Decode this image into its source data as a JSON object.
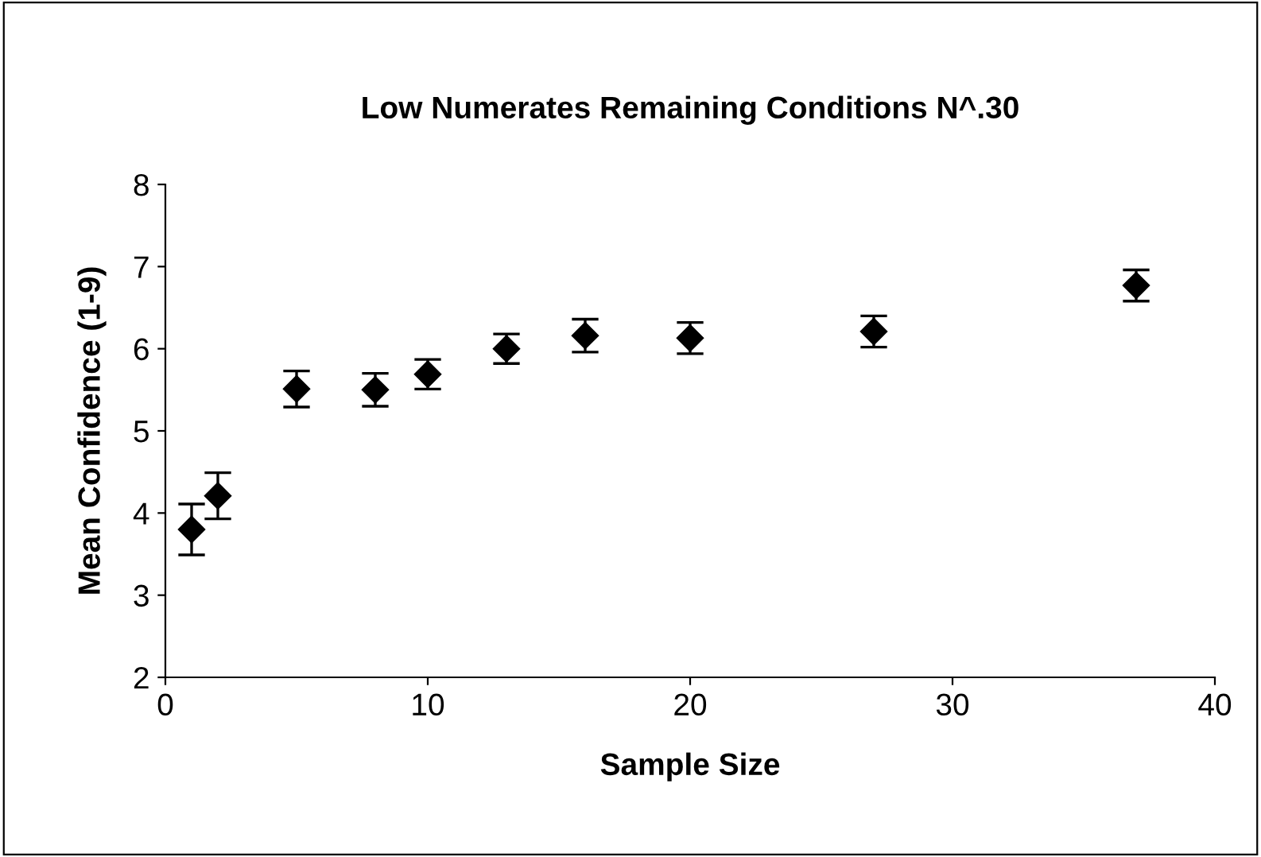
{
  "chart_data": {
    "type": "scatter",
    "title": "Low Numerates Remaining Conditions N^.30",
    "xlabel": "Sample Size",
    "ylabel": "Mean Confidence (1-9)",
    "x": [
      1,
      2,
      5,
      8,
      10,
      13,
      16,
      20,
      27,
      37
    ],
    "series": [
      {
        "color": "#000000",
        "values": [
          3.8,
          4.21,
          5.51,
          5.5,
          5.69,
          6.0,
          6.16,
          6.13,
          6.21,
          6.77
        ],
        "errors": [
          0.31,
          0.28,
          0.22,
          0.2,
          0.18,
          0.18,
          0.2,
          0.19,
          0.19,
          0.19
        ]
      }
    ],
    "marker": "diamond",
    "xlim": [
      0,
      40
    ],
    "ylim": [
      2,
      8
    ],
    "xticks": [
      0,
      10,
      20,
      30,
      40
    ],
    "yticks": [
      2,
      3,
      4,
      5,
      6,
      7,
      8
    ],
    "grid": false,
    "legend": false
  }
}
